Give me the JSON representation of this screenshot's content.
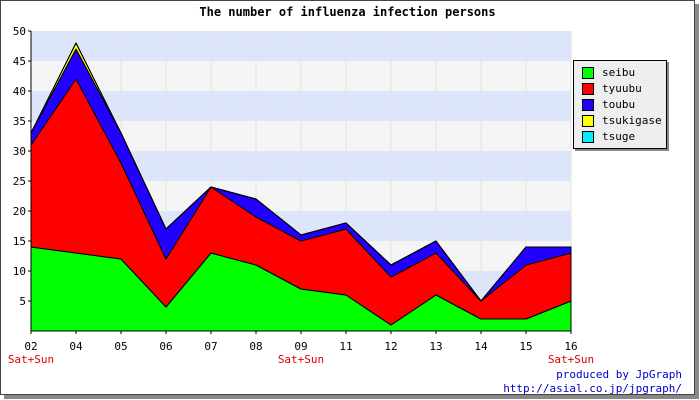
{
  "chart_data": {
    "type": "area",
    "stacked": true,
    "title": "The number of influenza infection persons",
    "categories": [
      "02",
      "04",
      "05",
      "06",
      "07",
      "08",
      "09",
      "11",
      "12",
      "13",
      "14",
      "15",
      "16"
    ],
    "sublabels": [
      "Sat+Sun",
      "",
      "",
      "",
      "",
      "",
      "Sat+Sun",
      "",
      "",
      "",
      "",
      "",
      "Sat+Sun"
    ],
    "ylim": [
      0,
      50
    ],
    "yticks": [
      5,
      10,
      15,
      20,
      25,
      30,
      35,
      40,
      45,
      50
    ],
    "grid": true,
    "legend_position": "right",
    "series": [
      {
        "name": "seibu",
        "color": "#00ff00",
        "values": [
          14,
          13,
          12,
          4,
          13,
          11,
          7,
          6,
          1,
          6,
          2,
          2,
          5
        ]
      },
      {
        "name": "tyuubu",
        "color": "#ff0000",
        "values": [
          17,
          29,
          16,
          8,
          11,
          8,
          8,
          11,
          8,
          7,
          3,
          9,
          8
        ]
      },
      {
        "name": "toubu",
        "color": "#2200ff",
        "values": [
          2,
          5,
          5,
          5,
          0,
          3,
          1,
          1,
          2,
          2,
          0,
          3,
          1
        ]
      },
      {
        "name": "tsukigase",
        "color": "#ffff00",
        "values": [
          0,
          1,
          0,
          0,
          0,
          0,
          0,
          0,
          0,
          0,
          0,
          0,
          0
        ]
      },
      {
        "name": "tsuge",
        "color": "#00eeff",
        "values": [
          0,
          0,
          0,
          0,
          0,
          0,
          0,
          0,
          0,
          0,
          0,
          0,
          0
        ]
      }
    ]
  },
  "credits": {
    "line1": "produced by JpGraph",
    "line2": "http://asial.co.jp/jpgraph/"
  }
}
